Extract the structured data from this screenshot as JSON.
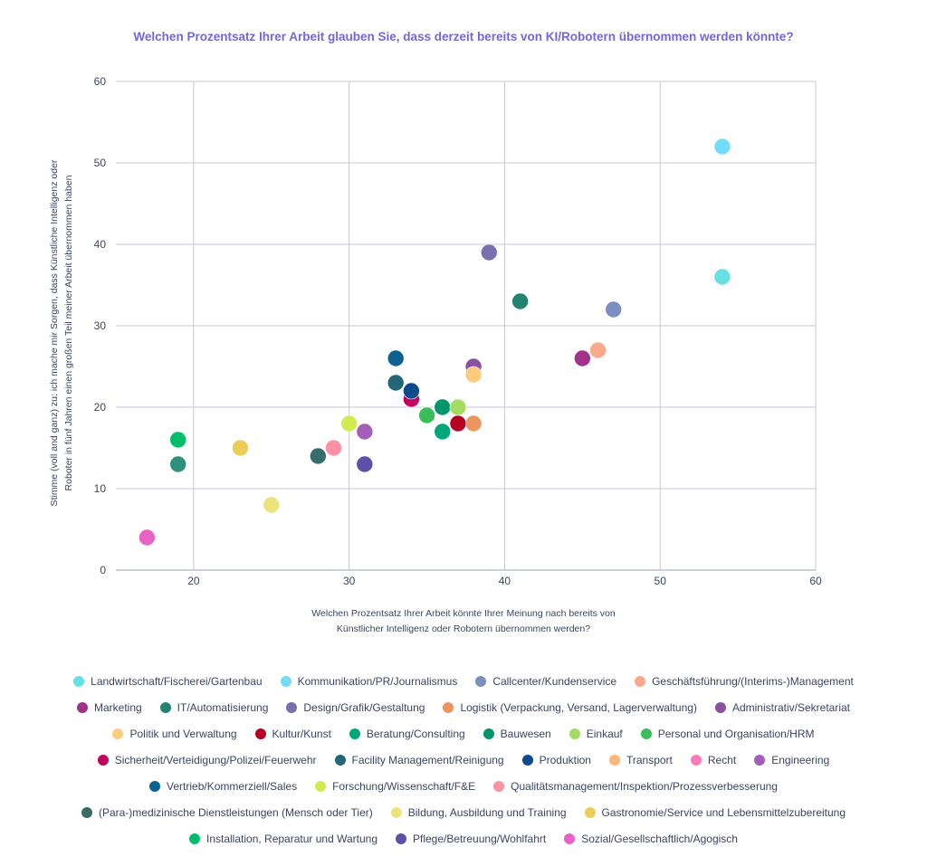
{
  "chart_data": {
    "type": "scatter",
    "title": "Welchen Prozentsatz Ihrer Arbeit glauben Sie, dass derzeit bereits von KI/Robotern übernommen werden könnte?",
    "xlabel": "Welchen Prozentsatz Ihrer Arbeit könnte Ihrer Meinung nach bereits von Künstlicher Intelligenz oder Robotern übernommen werden?",
    "xlabel_lines": [
      "Welchen Prozentsatz Ihrer Arbeit könnte Ihrer Meinung nach bereits von",
      "Künstlicher Intelligenz oder Robotern übernommen werden?"
    ],
    "ylabel": "Stimme (voll and ganz) zu: ich mache mir Sorgen, dass Künstliche Intelligenz oder Roboter in fünf Jahren einen großen Teil meiner Arbeit übernommen haben",
    "ylabel_lines": [
      "Stimme (voll and ganz) zu: ich mache mir Sorgen, dass Künstliche Intelligenz oder",
      "Roboter in fünf Jahren einen großen Teil meiner Arbeit übernommen haben"
    ],
    "xlim": [
      15,
      60
    ],
    "ylim": [
      0,
      60
    ],
    "xticks": [
      20,
      30,
      40,
      50,
      60
    ],
    "yticks": [
      0,
      10,
      20,
      30,
      40,
      50,
      60
    ],
    "grid": true,
    "legend_position": "bottom",
    "series": [
      {
        "name": "Landwirtschaft/Fischerei/Gartenbau",
        "color": "#67e0e4",
        "x": 54,
        "y": 36
      },
      {
        "name": "Kommunikation/PR/Journalismus",
        "color": "#74dcfa",
        "x": 54,
        "y": 52
      },
      {
        "name": "Callcenter/Kundenservice",
        "color": "#7b8fc3",
        "x": 47,
        "y": 32
      },
      {
        "name": "Geschäftsführung/(Interims-)Management",
        "color": "#fba98c",
        "x": 46,
        "y": 27
      },
      {
        "name": "Marketing",
        "color": "#a3328a",
        "x": 45,
        "y": 26
      },
      {
        "name": "IT/Automatisierung",
        "color": "#228470",
        "x": 41,
        "y": 33
      },
      {
        "name": "Design/Grafik/Gestaltung",
        "color": "#7a6fad",
        "x": 39,
        "y": 39
      },
      {
        "name": "Logistik (Verpackung, Versand, Lagerverwaltung)",
        "color": "#eb955f",
        "x": 38,
        "y": 18
      },
      {
        "name": "Administrativ/Sekretariat",
        "color": "#8c50a0",
        "x": 38,
        "y": 25
      },
      {
        "name": "Politik und Verwaltung",
        "color": "#fdcb7c",
        "x": 38,
        "y": 24
      },
      {
        "name": "Kultur/Kunst",
        "color": "#b70024",
        "x": 37,
        "y": 18
      },
      {
        "name": "Beratung/Consulting",
        "color": "#00a77a",
        "x": 36,
        "y": 17
      },
      {
        "name": "Bauwesen",
        "color": "#00956b",
        "x": 36,
        "y": 20
      },
      {
        "name": "Einkauf",
        "color": "#a4dc63",
        "x": 37,
        "y": 20
      },
      {
        "name": "Personal und Organisation/HRM",
        "color": "#3cbd5b",
        "x": 35,
        "y": 19
      },
      {
        "name": "Sicherheit/Verteidigung/Polizei/Feuerwehr",
        "color": "#c1005f",
        "x": 34,
        "y": 21
      },
      {
        "name": "Facility Management/Reinigung",
        "color": "#236677",
        "x": 33,
        "y": 23
      },
      {
        "name": "Produktion",
        "color": "#0b4b8d",
        "x": 34,
        "y": 22
      },
      {
        "name": "Transport",
        "color": "#fdb67a",
        "x": null,
        "y": null
      },
      {
        "name": "Recht",
        "color": "#fd7cb5",
        "x": null,
        "y": null
      },
      {
        "name": "Engineering",
        "color": "#a55eb8",
        "x": 31,
        "y": 17
      },
      {
        "name": "Vertrieb/Kommerziell/Sales",
        "color": "#0c6391",
        "x": 33,
        "y": 26
      },
      {
        "name": "Forschung/Wissenschaft/F&E",
        "color": "#d3ea50",
        "x": 30,
        "y": 18
      },
      {
        "name": "Qualitätsmanagement/Inspektion/Prozessverbesserung",
        "color": "#fc93a4",
        "x": 29,
        "y": 15
      },
      {
        "name": "(Para-)medizinische Dienstleistungen (Mensch oder Tier)",
        "color": "#366d6a",
        "x": 28,
        "y": 14
      },
      {
        "name": "Bildung, Ausbildung und Training",
        "color": "#eee27a",
        "x": 25,
        "y": 8
      },
      {
        "name": "Gastronomie/Service und Lebensmittelzubereitung",
        "color": "#edcd55",
        "x": 23,
        "y": 15
      },
      {
        "name": "Installation, Reparatur und Wartung",
        "color": "#00bd6a",
        "x": 19,
        "y": 16
      },
      {
        "name": "Pflege/Betreuung/Wohlfahrt",
        "color": "#5f4fa8",
        "x": 31,
        "y": 13
      },
      {
        "name": "Sozial/Gesellschaftlich/Agogisch",
        "color": "#e962c8",
        "x": 17,
        "y": 4
      }
    ],
    "extra_points": [
      {
        "color": "#2d917d",
        "x": 19,
        "y": 13
      }
    ]
  },
  "legend_rows": [
    [
      0,
      1,
      2,
      3
    ],
    [
      4,
      5,
      6,
      7,
      8
    ],
    [
      9,
      10,
      11,
      12,
      13,
      14
    ],
    [
      15,
      16,
      17,
      18,
      19,
      20
    ],
    [
      21,
      22,
      23
    ],
    [
      24,
      25,
      26
    ],
    [
      27,
      28,
      29
    ]
  ]
}
